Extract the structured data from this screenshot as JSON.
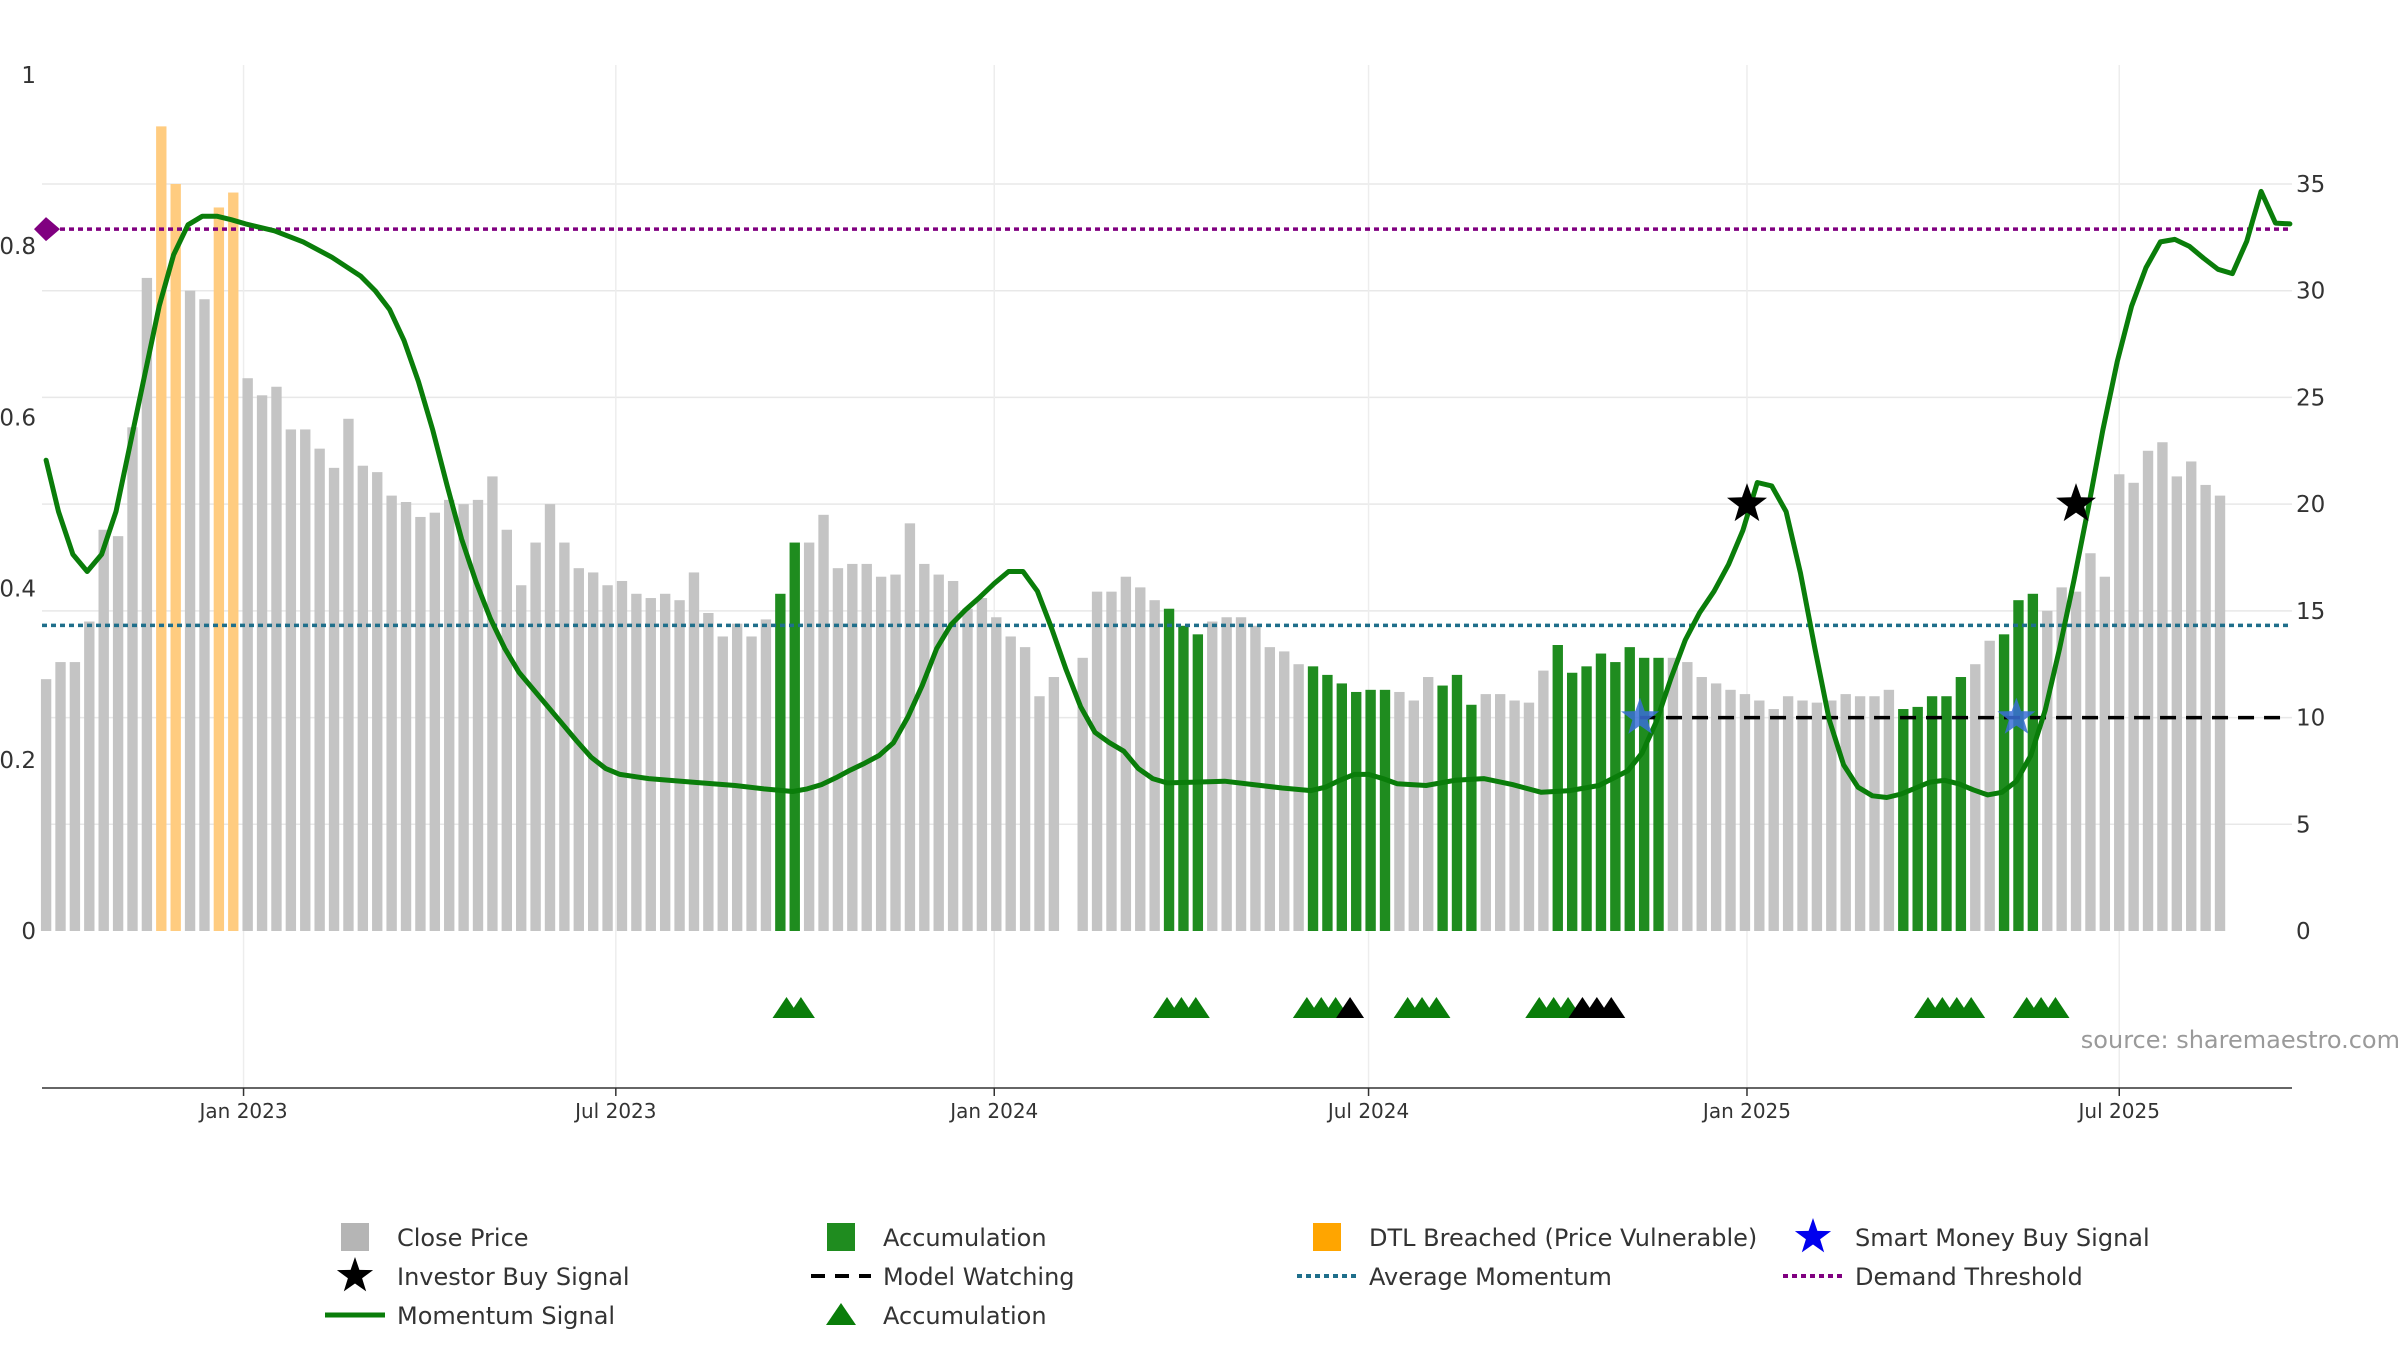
{
  "chart_data": {
    "type": "bar",
    "left_axis": {
      "ticks": [
        "0",
        "0.2",
        "0.4",
        "0.6",
        "0.8",
        "1"
      ],
      "range": [
        0,
        1
      ]
    },
    "right_axis": {
      "ticks": [
        "0",
        "5",
        "10",
        "15",
        "20",
        "25",
        "30",
        "35"
      ],
      "range": [
        0,
        40
      ]
    },
    "x_ticks": [
      {
        "label": "Jan 2023",
        "date": "2023-01-01"
      },
      {
        "label": "Jul 2023",
        "date": "2023-07-01"
      },
      {
        "label": "Jan 2024",
        "date": "2024-01-01"
      },
      {
        "label": "Jul 2024",
        "date": "2024-07-01"
      },
      {
        "label": "Jan 2025",
        "date": "2025-01-01"
      },
      {
        "label": "Jul 2025",
        "date": "2025-07-01"
      }
    ],
    "x_range": [
      "2022-09-25",
      "2025-09-23"
    ],
    "bar_start": "2022-09-27",
    "bar_step_days": 7,
    "close_price": [
      11.8,
      12.6,
      12.6,
      14.5,
      18.8,
      18.5,
      23.6,
      30.6,
      37.7,
      35.0,
      30.0,
      29.6,
      33.9,
      34.6,
      25.9,
      25.1,
      25.5,
      23.5,
      23.5,
      22.6,
      21.7,
      24.0,
      21.8,
      21.5,
      20.4,
      20.1,
      19.4,
      19.6,
      20.2,
      20.0,
      20.2,
      21.3,
      18.8,
      16.2,
      18.2,
      20.0,
      18.2,
      17.0,
      16.8,
      16.2,
      16.4,
      15.8,
      15.6,
      15.8,
      15.5,
      16.8,
      14.9,
      13.8,
      14.4,
      13.8,
      14.6,
      15.8,
      18.2,
      18.2,
      19.5,
      17.0,
      17.2,
      17.2,
      16.6,
      16.7,
      19.1,
      17.2,
      16.7,
      16.4,
      15.1,
      15.6,
      14.7,
      13.8,
      13.3,
      11.0,
      11.9,
      null,
      12.8,
      15.9,
      15.9,
      16.6,
      16.1,
      15.5,
      15.1,
      14.3,
      13.9,
      14.5,
      14.7,
      14.7,
      14.3,
      13.3,
      13.1,
      12.5,
      12.4,
      12.0,
      11.6,
      11.2,
      11.3,
      11.3,
      11.2,
      10.8,
      11.9,
      11.5,
      12.0,
      10.6,
      11.1,
      11.1,
      10.8,
      10.7,
      12.2,
      13.4,
      12.1,
      12.4,
      13.0,
      12.6,
      13.3,
      12.8,
      12.8,
      12.8,
      12.6,
      11.9,
      11.6,
      11.3,
      11.1,
      10.8,
      10.4,
      11.0,
      10.8,
      10.7,
      10.8,
      11.1,
      11.0,
      11.0,
      11.3,
      10.4,
      10.5,
      11.0,
      11.0,
      11.9,
      12.5,
      13.6,
      13.9,
      15.5,
      15.8,
      15.0,
      16.1,
      15.9,
      17.7,
      16.6,
      21.4,
      21.0,
      22.5,
      22.9,
      21.3,
      22.0,
      20.9,
      20.4
    ],
    "accumulation_bars": [
      51,
      52,
      78,
      79,
      80,
      88,
      89,
      90,
      91,
      92,
      93,
      97,
      98,
      99,
      105,
      106,
      107,
      108,
      109,
      110,
      111,
      112,
      129,
      130,
      131,
      132,
      133,
      136,
      137,
      138
    ],
    "dtl_breached_bars": [
      8,
      9,
      12,
      13
    ],
    "momentum_signal": [
      [
        "2022-09-27",
        0.55
      ],
      [
        "2022-10-03",
        0.49
      ],
      [
        "2022-10-10",
        0.44
      ],
      [
        "2022-10-17",
        0.42
      ],
      [
        "2022-10-24",
        0.44
      ],
      [
        "2022-10-31",
        0.49
      ],
      [
        "2022-11-07",
        0.57
      ],
      [
        "2022-11-14",
        0.65
      ],
      [
        "2022-11-21",
        0.73
      ],
      [
        "2022-11-28",
        0.79
      ],
      [
        "2022-12-05",
        0.825
      ],
      [
        "2022-12-12",
        0.835
      ],
      [
        "2022-12-19",
        0.835
      ],
      [
        "2022-12-26",
        0.831
      ],
      [
        "2023-01-02",
        0.826
      ],
      [
        "2023-01-16",
        0.818
      ],
      [
        "2023-01-30",
        0.805
      ],
      [
        "2023-02-13",
        0.787
      ],
      [
        "2023-02-27",
        0.765
      ],
      [
        "2023-03-06",
        0.748
      ],
      [
        "2023-03-13",
        0.726
      ],
      [
        "2023-03-20",
        0.69
      ],
      [
        "2023-03-27",
        0.642
      ],
      [
        "2023-04-03",
        0.585
      ],
      [
        "2023-04-10",
        0.52
      ],
      [
        "2023-04-17",
        0.458
      ],
      [
        "2023-04-24",
        0.408
      ],
      [
        "2023-05-01",
        0.365
      ],
      [
        "2023-05-08",
        0.33
      ],
      [
        "2023-05-15",
        0.302
      ],
      [
        "2023-05-29",
        0.262
      ],
      [
        "2023-06-12",
        0.222
      ],
      [
        "2023-06-19",
        0.203
      ],
      [
        "2023-06-26",
        0.19
      ],
      [
        "2023-07-03",
        0.183
      ],
      [
        "2023-07-17",
        0.178
      ],
      [
        "2023-08-07",
        0.174
      ],
      [
        "2023-08-28",
        0.17
      ],
      [
        "2023-09-11",
        0.166
      ],
      [
        "2023-09-25",
        0.163
      ],
      [
        "2023-10-02",
        0.166
      ],
      [
        "2023-10-09",
        0.171
      ],
      [
        "2023-10-16",
        0.179
      ],
      [
        "2023-10-23",
        0.188
      ],
      [
        "2023-10-30",
        0.196
      ],
      [
        "2023-11-06",
        0.205
      ],
      [
        "2023-11-13",
        0.22
      ],
      [
        "2023-11-20",
        0.25
      ],
      [
        "2023-11-27",
        0.287
      ],
      [
        "2023-12-04",
        0.33
      ],
      [
        "2023-12-11",
        0.358
      ],
      [
        "2023-12-18",
        0.375
      ],
      [
        "2023-12-25",
        0.39
      ],
      [
        "2024-01-01",
        0.406
      ],
      [
        "2024-01-08",
        0.42
      ],
      [
        "2024-01-15",
        0.42
      ],
      [
        "2024-01-22",
        0.397
      ],
      [
        "2024-01-29",
        0.353
      ],
      [
        "2024-02-05",
        0.305
      ],
      [
        "2024-02-12",
        0.262
      ],
      [
        "2024-02-19",
        0.232
      ],
      [
        "2024-02-26",
        0.22
      ],
      [
        "2024-03-04",
        0.21
      ],
      [
        "2024-03-11",
        0.19
      ],
      [
        "2024-03-18",
        0.178
      ],
      [
        "2024-03-25",
        0.173
      ],
      [
        "2024-04-08",
        0.174
      ],
      [
        "2024-04-22",
        0.175
      ],
      [
        "2024-05-06",
        0.171
      ],
      [
        "2024-05-20",
        0.167
      ],
      [
        "2024-06-03",
        0.164
      ],
      [
        "2024-06-10",
        0.168
      ],
      [
        "2024-06-17",
        0.176
      ],
      [
        "2024-06-24",
        0.183
      ],
      [
        "2024-07-01",
        0.183
      ],
      [
        "2024-07-08",
        0.178
      ],
      [
        "2024-07-15",
        0.172
      ],
      [
        "2024-07-29",
        0.17
      ],
      [
        "2024-08-12",
        0.176
      ],
      [
        "2024-08-26",
        0.178
      ],
      [
        "2024-09-09",
        0.171
      ],
      [
        "2024-09-23",
        0.162
      ],
      [
        "2024-10-07",
        0.164
      ],
      [
        "2024-10-21",
        0.17
      ],
      [
        "2024-11-04",
        0.187
      ],
      [
        "2024-11-11",
        0.208
      ],
      [
        "2024-11-18",
        0.245
      ],
      [
        "2024-11-25",
        0.295
      ],
      [
        "2024-12-02",
        0.34
      ],
      [
        "2024-12-09",
        0.372
      ],
      [
        "2024-12-16",
        0.397
      ],
      [
        "2024-12-23",
        0.428
      ],
      [
        "2024-12-30",
        0.468
      ],
      [
        "2025-01-06",
        0.524
      ],
      [
        "2025-01-13",
        0.52
      ],
      [
        "2025-01-20",
        0.49
      ],
      [
        "2025-01-27",
        0.418
      ],
      [
        "2025-02-03",
        0.33
      ],
      [
        "2025-02-10",
        0.247
      ],
      [
        "2025-02-17",
        0.194
      ],
      [
        "2025-02-24",
        0.168
      ],
      [
        "2025-03-03",
        0.158
      ],
      [
        "2025-03-10",
        0.156
      ],
      [
        "2025-03-17",
        0.16
      ],
      [
        "2025-03-24",
        0.167
      ],
      [
        "2025-03-31",
        0.174
      ],
      [
        "2025-04-07",
        0.176
      ],
      [
        "2025-04-14",
        0.172
      ],
      [
        "2025-04-21",
        0.165
      ],
      [
        "2025-04-28",
        0.159
      ],
      [
        "2025-05-05",
        0.162
      ],
      [
        "2025-05-12",
        0.175
      ],
      [
        "2025-05-19",
        0.205
      ],
      [
        "2025-05-26",
        0.258
      ],
      [
        "2025-06-02",
        0.33
      ],
      [
        "2025-06-09",
        0.41
      ],
      [
        "2025-06-16",
        0.495
      ],
      [
        "2025-06-23",
        0.585
      ],
      [
        "2025-06-30",
        0.665
      ],
      [
        "2025-07-07",
        0.73
      ],
      [
        "2025-07-14",
        0.775
      ],
      [
        "2025-07-21",
        0.805
      ],
      [
        "2025-07-28",
        0.808
      ],
      [
        "2025-08-04",
        0.8
      ],
      [
        "2025-08-11",
        0.786
      ],
      [
        "2025-08-18",
        0.773
      ],
      [
        "2025-08-25",
        0.768
      ],
      [
        "2025-09-01",
        0.806
      ],
      [
        "2025-09-08",
        0.864
      ],
      [
        "2025-09-15",
        0.827
      ],
      [
        "2025-09-22",
        0.826
      ]
    ],
    "demand_threshold": 0.82,
    "average_momentum": 0.357,
    "model_watching": {
      "start": "2024-11-10",
      "end": "2025-09-22",
      "value": 10
    },
    "investor_buy_signals": [
      {
        "date": "2025-01-01",
        "value": 20
      },
      {
        "date": "2025-06-10",
        "value": 20
      }
    ],
    "smart_money_buy_signals": [
      {
        "date": "2024-11-10",
        "value": 10
      },
      {
        "date": "2025-05-12",
        "value": 10
      }
    ],
    "accumulation_markers": [
      {
        "date": "2023-09-22",
        "color": "green"
      },
      {
        "date": "2023-09-29",
        "color": "green"
      },
      {
        "date": "2024-03-25",
        "color": "green"
      },
      {
        "date": "2024-04-01",
        "color": "green"
      },
      {
        "date": "2024-04-08",
        "color": "green"
      },
      {
        "date": "2024-06-01",
        "color": "green"
      },
      {
        "date": "2024-06-08",
        "color": "green"
      },
      {
        "date": "2024-06-15",
        "color": "green"
      },
      {
        "date": "2024-06-22",
        "color": "black"
      },
      {
        "date": "2024-07-20",
        "color": "green"
      },
      {
        "date": "2024-07-27",
        "color": "green"
      },
      {
        "date": "2024-08-03",
        "color": "green"
      },
      {
        "date": "2024-09-22",
        "color": "green"
      },
      {
        "date": "2024-09-29",
        "color": "green"
      },
      {
        "date": "2024-10-06",
        "color": "green"
      },
      {
        "date": "2024-10-13",
        "color": "black"
      },
      {
        "date": "2024-10-20",
        "color": "black"
      },
      {
        "date": "2024-10-27",
        "color": "black"
      },
      {
        "date": "2025-03-30",
        "color": "green"
      },
      {
        "date": "2025-04-06",
        "color": "green"
      },
      {
        "date": "2025-04-13",
        "color": "green"
      },
      {
        "date": "2025-04-20",
        "color": "green"
      },
      {
        "date": "2025-05-17",
        "color": "green"
      },
      {
        "date": "2025-05-24",
        "color": "green"
      },
      {
        "date": "2025-05-31",
        "color": "green"
      }
    ],
    "watermark": "source: sharemaestro.com",
    "legend": [
      {
        "label": "Close Price",
        "symbol": "square",
        "color": "#b5b5b5"
      },
      {
        "label": "Accumulation",
        "symbol": "square",
        "color": "#1f8c1f"
      },
      {
        "label": "DTL Breached (Price Vulnerable)",
        "symbol": "square",
        "color": "#ffa500"
      },
      {
        "label": "Smart Money Buy Signal",
        "symbol": "star",
        "color": "#0000ee"
      },
      {
        "label": "Investor Buy Signal",
        "symbol": "star",
        "color": "#000000"
      },
      {
        "label": "Model Watching",
        "symbol": "dash",
        "color": "#000000"
      },
      {
        "label": "Average Momentum",
        "symbol": "dot-line",
        "color": "#1f6f8b"
      },
      {
        "label": "Demand Threshold",
        "symbol": "dot-line",
        "color": "#800080"
      },
      {
        "label": "Momentum Signal",
        "symbol": "line",
        "color": "#0a7d0a"
      },
      {
        "label": "Accumulation",
        "symbol": "triangle",
        "color": "#0a7d0a"
      }
    ],
    "legend_placement": "bottom",
    "grid": true,
    "colors": {
      "close_price": "#c4c4c4",
      "accumulation": "#1f8c1f",
      "dtl_breached": "#ffcc80",
      "momentum": "#0a7d0a",
      "average_momentum": "#1f6f8b",
      "demand_threshold": "#800080",
      "investor_star": "#000000",
      "smart_money_star": "#3a6fd6"
    }
  }
}
